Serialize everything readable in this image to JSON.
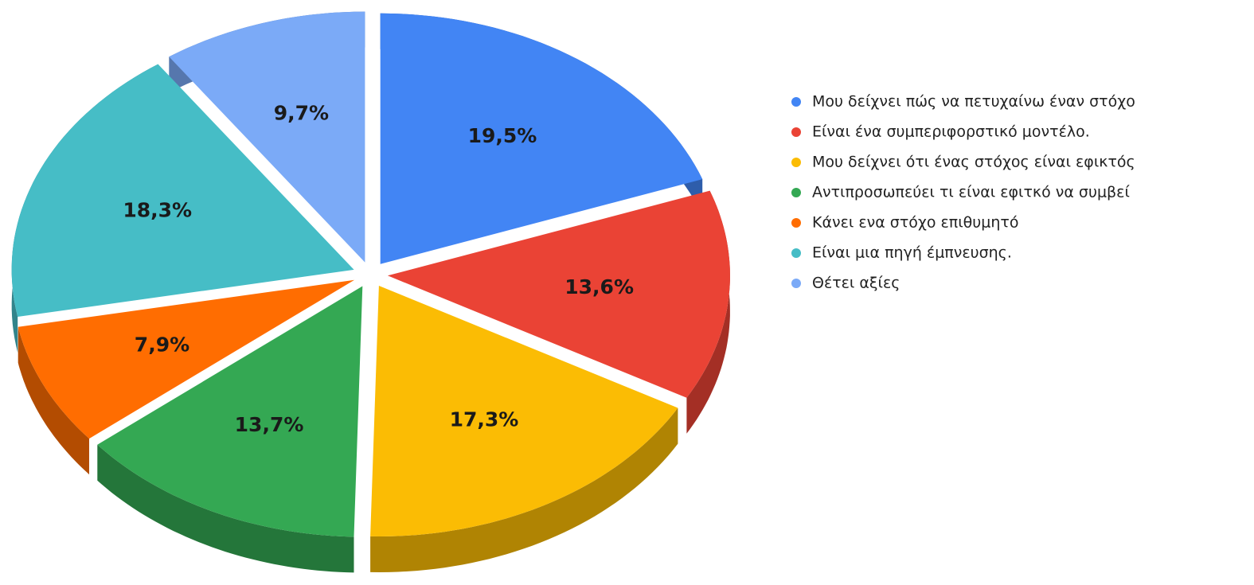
{
  "chart_data": {
    "type": "pie",
    "categories": [
      "Μου δείχνει πώς να πετυχαίνω έναν στόχο",
      "Είναι ένα συμπεριφορστικό μοντέλο.",
      "Μου δείχνει ότι ένας  στόχος είναι εφικτός",
      "Αντιπροσωπεύει τι είναι εφιτκό να συμβεί",
      "Κάνει ενα στόχο επιθυμητό",
      "Είναι μια πηγή έμπνευσης.",
      "Θέτει αξίες"
    ],
    "values": [
      19.5,
      13.6,
      17.3,
      13.7,
      7.9,
      18.3,
      9.7
    ],
    "value_labels": [
      "19,5%",
      "13,6%",
      "17,3%",
      "13,7%",
      "7,9%",
      "18,3%",
      "9,7%"
    ],
    "colors": [
      "#4285f4",
      "#ea4335",
      "#fbbc04",
      "#34a853",
      "#ff6d01",
      "#46bdc6",
      "#7baaf7"
    ],
    "legend": "right"
  }
}
